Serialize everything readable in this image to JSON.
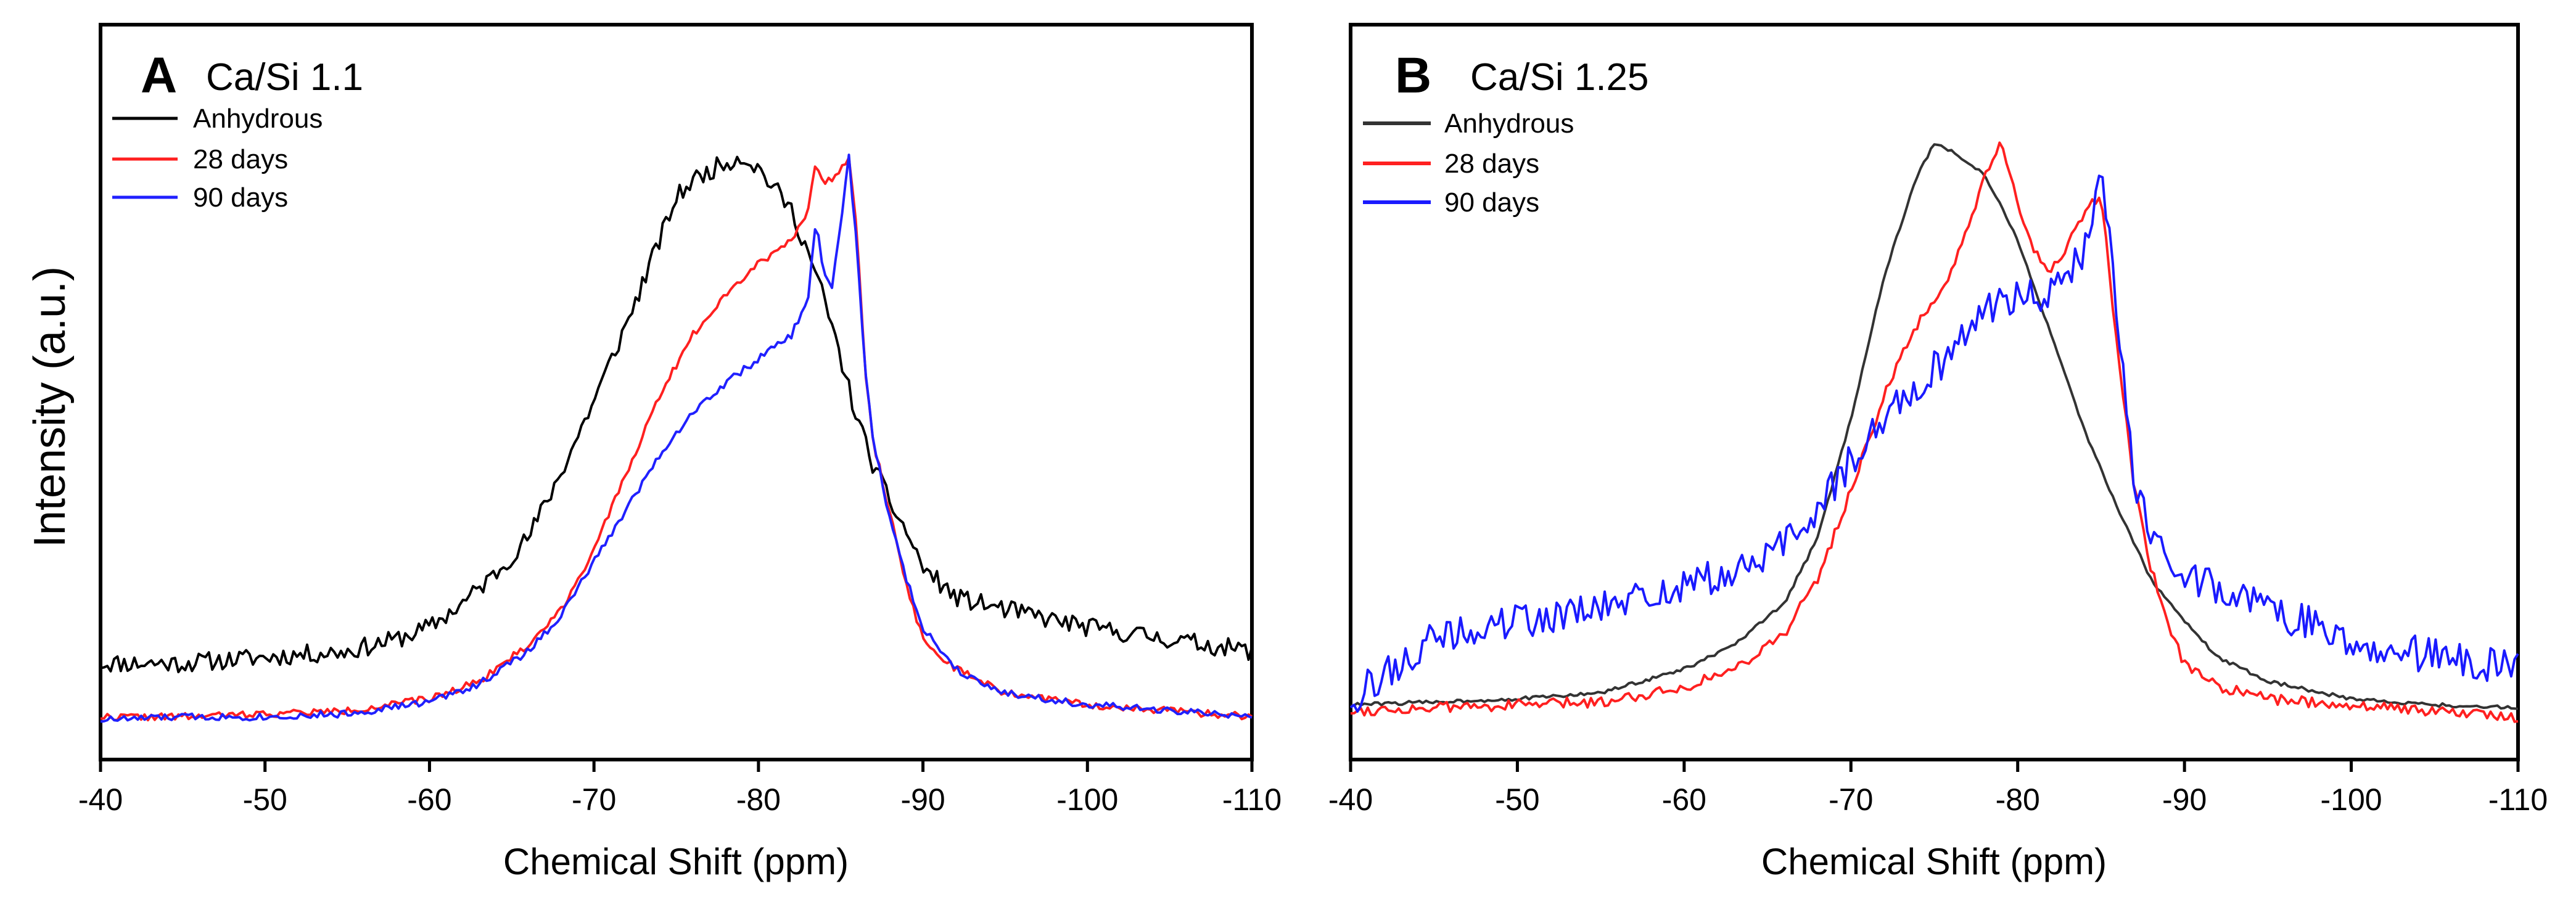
{
  "figure": {
    "ylabel": "Intensity (a.u.)"
  },
  "chart_data": [
    {
      "type": "line",
      "panel": "A",
      "title": "Ca/Si 1.1",
      "xlabel": "Chemical Shift (ppm)",
      "ylabel": "Intensity (a.u.)",
      "xlim": [
        -40,
        -110
      ],
      "ylim": [
        0,
        1.1
      ],
      "xticks": [
        -40,
        -50,
        -60,
        -70,
        -80,
        -90,
        -100,
        -110
      ],
      "xtick_labels": [
        "-40",
        "-50",
        "-60",
        "-70",
        "-80",
        "-90",
        "-100",
        "-110"
      ],
      "legend": [
        "Anhydrous",
        "28 days",
        "90 days"
      ],
      "series": [
        {
          "name": "Anhydrous",
          "color": "#000000",
          "noise": 0.016,
          "seed": 11,
          "x": [
            -40,
            -45,
            -50,
            -55,
            -58,
            -60,
            -62,
            -64,
            -66,
            -68,
            -70,
            -72,
            -74,
            -75,
            -76,
            -78,
            -79,
            -80,
            -82,
            -83,
            -84,
            -85,
            -86,
            -87,
            -88,
            -89,
            -90,
            -92,
            -95,
            -100,
            -105,
            -110
          ],
          "y": [
            0.11,
            0.11,
            0.12,
            0.13,
            0.15,
            0.17,
            0.21,
            0.26,
            0.32,
            0.43,
            0.55,
            0.68,
            0.82,
            0.89,
            0.92,
            0.95,
            0.96,
            0.94,
            0.87,
            0.8,
            0.72,
            0.62,
            0.52,
            0.44,
            0.38,
            0.33,
            0.27,
            0.22,
            0.2,
            0.17,
            0.15,
            0.13
          ]
        },
        {
          "name": "28 days",
          "color": "#ff2020",
          "noise": 0.006,
          "seed": 22,
          "x": [
            -40,
            -45,
            -50,
            -55,
            -60,
            -63,
            -66,
            -68,
            -70,
            -72,
            -74,
            -76,
            -78,
            -80,
            -82,
            -83,
            -83.5,
            -84,
            -85,
            -85.5,
            -86,
            -86.5,
            -87,
            -88,
            -89,
            -90,
            -92,
            -95,
            -100,
            -105,
            -110
          ],
          "y": [
            0.02,
            0.02,
            0.025,
            0.03,
            0.05,
            0.08,
            0.14,
            0.2,
            0.3,
            0.43,
            0.56,
            0.66,
            0.73,
            0.78,
            0.82,
            0.87,
            0.95,
            0.91,
            0.94,
            0.96,
            0.83,
            0.6,
            0.48,
            0.36,
            0.24,
            0.15,
            0.1,
            0.06,
            0.04,
            0.03,
            0.02
          ]
        },
        {
          "name": "90 days",
          "color": "#2020ff",
          "noise": 0.006,
          "seed": 33,
          "x": [
            -40,
            -45,
            -50,
            -55,
            -60,
            -63,
            -66,
            -68,
            -70,
            -72,
            -74,
            -76,
            -78,
            -80,
            -82,
            -83,
            -83.5,
            -84,
            -84.5,
            -85,
            -85.5,
            -86,
            -86.5,
            -87,
            -88,
            -89,
            -90,
            -92,
            -95,
            -100,
            -105,
            -110
          ],
          "y": [
            0.015,
            0.02,
            0.02,
            0.025,
            0.045,
            0.075,
            0.13,
            0.19,
            0.28,
            0.37,
            0.46,
            0.53,
            0.58,
            0.62,
            0.66,
            0.72,
            0.85,
            0.76,
            0.74,
            0.85,
            0.96,
            0.8,
            0.6,
            0.48,
            0.35,
            0.25,
            0.17,
            0.1,
            0.06,
            0.04,
            0.03,
            0.02
          ]
        }
      ]
    },
    {
      "type": "line",
      "panel": "B",
      "title": "Ca/Si 1.25",
      "xlabel": "Chemical Shift (ppm)",
      "ylabel": "Intensity (a.u.)",
      "xlim": [
        -40,
        -110
      ],
      "ylim": [
        0,
        1.1
      ],
      "xticks": [
        -40,
        -50,
        -60,
        -70,
        -80,
        -90,
        -100,
        -110
      ],
      "xtick_labels": [
        "-40",
        "-50",
        "-60",
        "-70",
        "-80",
        "-90",
        "-100",
        "-110"
      ],
      "legend": [
        "Anhydrous",
        "28 days",
        "90 days"
      ],
      "series": [
        {
          "name": "Anhydrous",
          "color": "#333333",
          "noise": 0.003,
          "seed": 44,
          "x": [
            -40,
            -45,
            -50,
            -55,
            -60,
            -63,
            -66,
            -68,
            -70,
            -72,
            -74,
            -75,
            -76,
            -78,
            -80,
            -82,
            -84,
            -86,
            -88,
            -90,
            -92,
            -95,
            -100,
            -105,
            -110
          ],
          "y": [
            0.04,
            0.045,
            0.05,
            0.06,
            0.1,
            0.14,
            0.21,
            0.32,
            0.52,
            0.76,
            0.93,
            0.98,
            0.97,
            0.93,
            0.82,
            0.66,
            0.5,
            0.37,
            0.25,
            0.18,
            0.12,
            0.08,
            0.05,
            0.04,
            0.035
          ]
        },
        {
          "name": "28 days",
          "color": "#ff2020",
          "noise": 0.009,
          "seed": 55,
          "x": [
            -40,
            -45,
            -50,
            -55,
            -60,
            -63,
            -66,
            -68,
            -70,
            -72,
            -74,
            -76,
            -77,
            -78,
            -79,
            -80,
            -81,
            -82,
            -83,
            -84,
            -85,
            -86,
            -87,
            -88,
            -89,
            -90,
            -92,
            -95,
            -100,
            -105,
            -110
          ],
          "y": [
            0.03,
            0.035,
            0.04,
            0.045,
            0.07,
            0.1,
            0.16,
            0.25,
            0.4,
            0.56,
            0.68,
            0.76,
            0.84,
            0.92,
            0.98,
            0.88,
            0.8,
            0.77,
            0.81,
            0.86,
            0.9,
            0.63,
            0.4,
            0.27,
            0.17,
            0.11,
            0.07,
            0.05,
            0.04,
            0.03,
            0.02
          ]
        },
        {
          "name": "90 days",
          "color": "#1a1aff",
          "noise": 0.03,
          "seed": 66,
          "x": [
            -40,
            -45,
            -50,
            -55,
            -60,
            -63,
            -65,
            -67,
            -70,
            -72,
            -74,
            -76,
            -78,
            -80,
            -82,
            -84,
            -84.5,
            -85,
            -85.5,
            -86,
            -86.5,
            -87,
            -88,
            -89,
            -90,
            -92,
            -95,
            -100,
            -105,
            -110
          ],
          "y": [
            0.05,
            0.15,
            0.18,
            0.2,
            0.24,
            0.26,
            0.29,
            0.33,
            0.45,
            0.52,
            0.58,
            0.63,
            0.7,
            0.73,
            0.73,
            0.8,
            0.86,
            0.94,
            0.82,
            0.7,
            0.55,
            0.4,
            0.33,
            0.29,
            0.26,
            0.24,
            0.2,
            0.15,
            0.12,
            0.1
          ]
        }
      ]
    }
  ]
}
